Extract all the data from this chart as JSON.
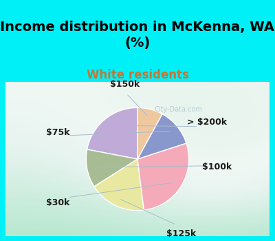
{
  "title": "Income distribution in McKenna, WA\n(%)",
  "subtitle": "White residents",
  "labels": [
    "> $200k",
    "$100k",
    "$125k",
    "$30k",
    "$75k",
    "$150k"
  ],
  "values": [
    22,
    12,
    18,
    28,
    12,
    8
  ],
  "colors": [
    "#c0aad8",
    "#a8bc94",
    "#e8e8a0",
    "#f4aab8",
    "#8898cc",
    "#f0c8a0"
  ],
  "startangle": 90,
  "bg_cyan": "#00f0f8",
  "title_fontsize": 14,
  "subtitle_color": "#c07838",
  "subtitle_fontsize": 12,
  "label_fontsize": 9,
  "watermark": "City-Data.com"
}
